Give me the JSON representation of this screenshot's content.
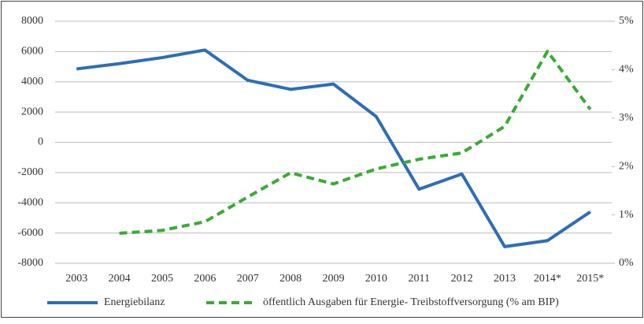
{
  "chart_data": {
    "type": "line",
    "categories": [
      "2003",
      "2004",
      "2005",
      "2006",
      "2007",
      "2008",
      "2009",
      "2010",
      "2011",
      "2012",
      "2013",
      "2014*",
      "2015*"
    ],
    "series": [
      {
        "name": "Energiebilanz",
        "color": "#2e6db4",
        "dash": false,
        "axis": "y",
        "values": [
          4850,
          5200,
          5600,
          6100,
          4100,
          3500,
          3850,
          1700,
          -3100,
          -2100,
          -6900,
          -6500,
          -4600
        ]
      },
      {
        "name": "öffentlich Ausgaben für Energie- Treibstoffversorgung (% am BIP)",
        "color": "#3aaa35",
        "dash": true,
        "axis": "y2",
        "values": [
          null,
          0.62,
          0.68,
          0.86,
          1.37,
          1.87,
          1.64,
          1.95,
          2.15,
          2.28,
          2.83,
          4.38,
          3.18
        ]
      }
    ],
    "ylim": [
      -8000,
      8000
    ],
    "yticks": [
      -8000,
      -6000,
      -4000,
      -2000,
      0,
      2000,
      4000,
      6000,
      8000
    ],
    "y2lim": [
      0,
      5
    ],
    "y2ticks": [
      {
        "value": 0,
        "label": "0%"
      },
      {
        "value": 1,
        "label": "1%"
      },
      {
        "value": 2,
        "label": "2%"
      },
      {
        "value": 3,
        "label": "3%"
      },
      {
        "value": 4,
        "label": "4%"
      },
      {
        "value": 5,
        "label": "5%"
      }
    ],
    "grid": true,
    "legend": "bottom"
  }
}
